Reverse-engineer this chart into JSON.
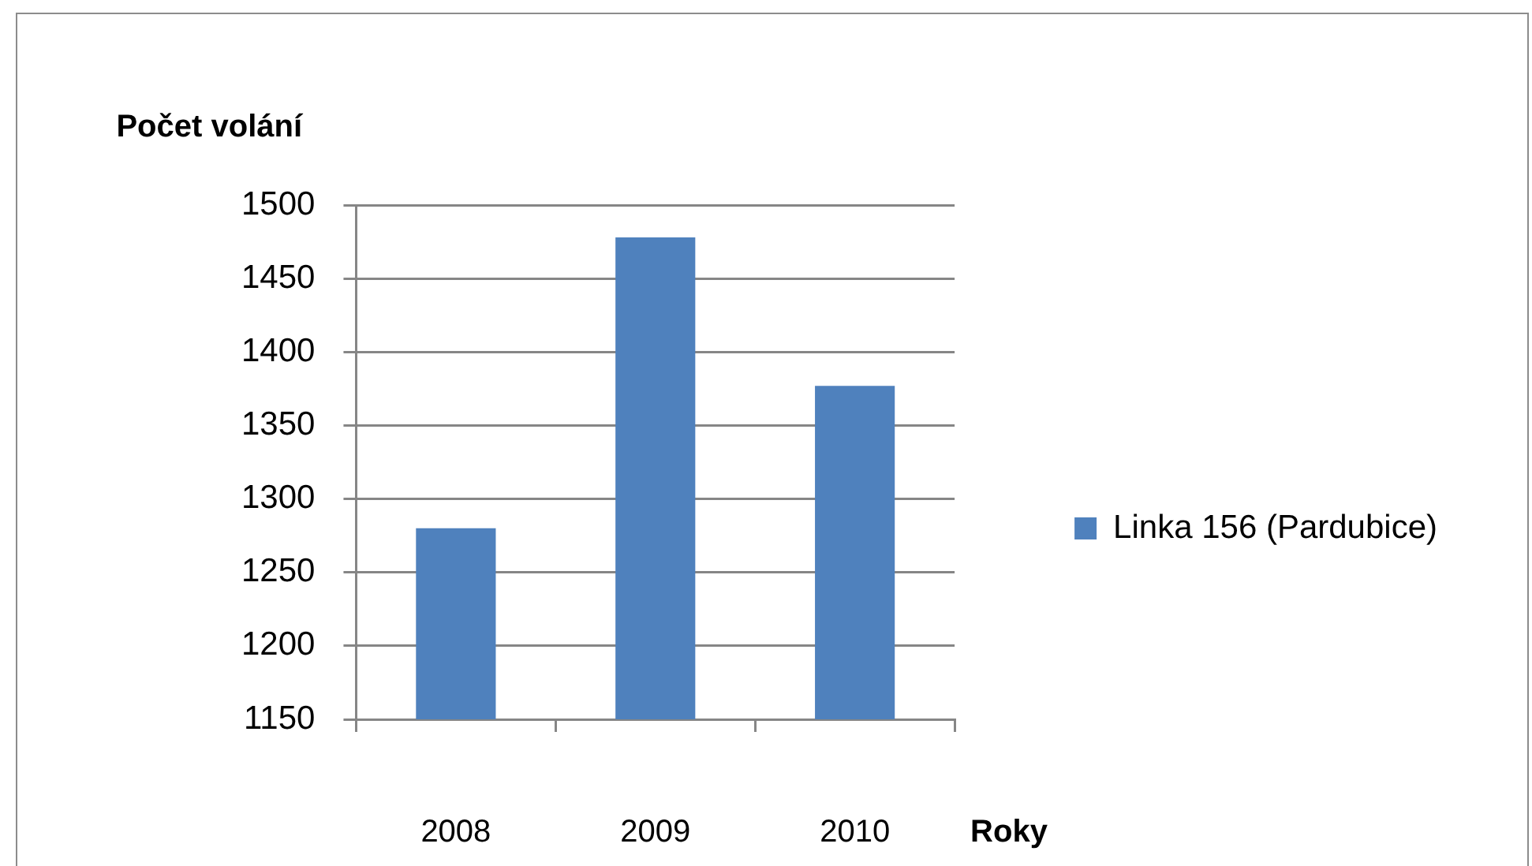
{
  "chart_data": {
    "type": "bar",
    "ylabel": "Počet volání",
    "xlabel": "Roky",
    "categories": [
      "2008",
      "2009",
      "2010"
    ],
    "series": [
      {
        "name": "Linka 156 (Pardubice)",
        "color": "#4f81bd",
        "values": [
          1280,
          1478,
          1377
        ]
      }
    ],
    "ylim": [
      1150,
      1500
    ],
    "yticks": [
      1150,
      1200,
      1250,
      1300,
      1350,
      1400,
      1450,
      1500
    ],
    "grid": "y",
    "legend": "right"
  }
}
